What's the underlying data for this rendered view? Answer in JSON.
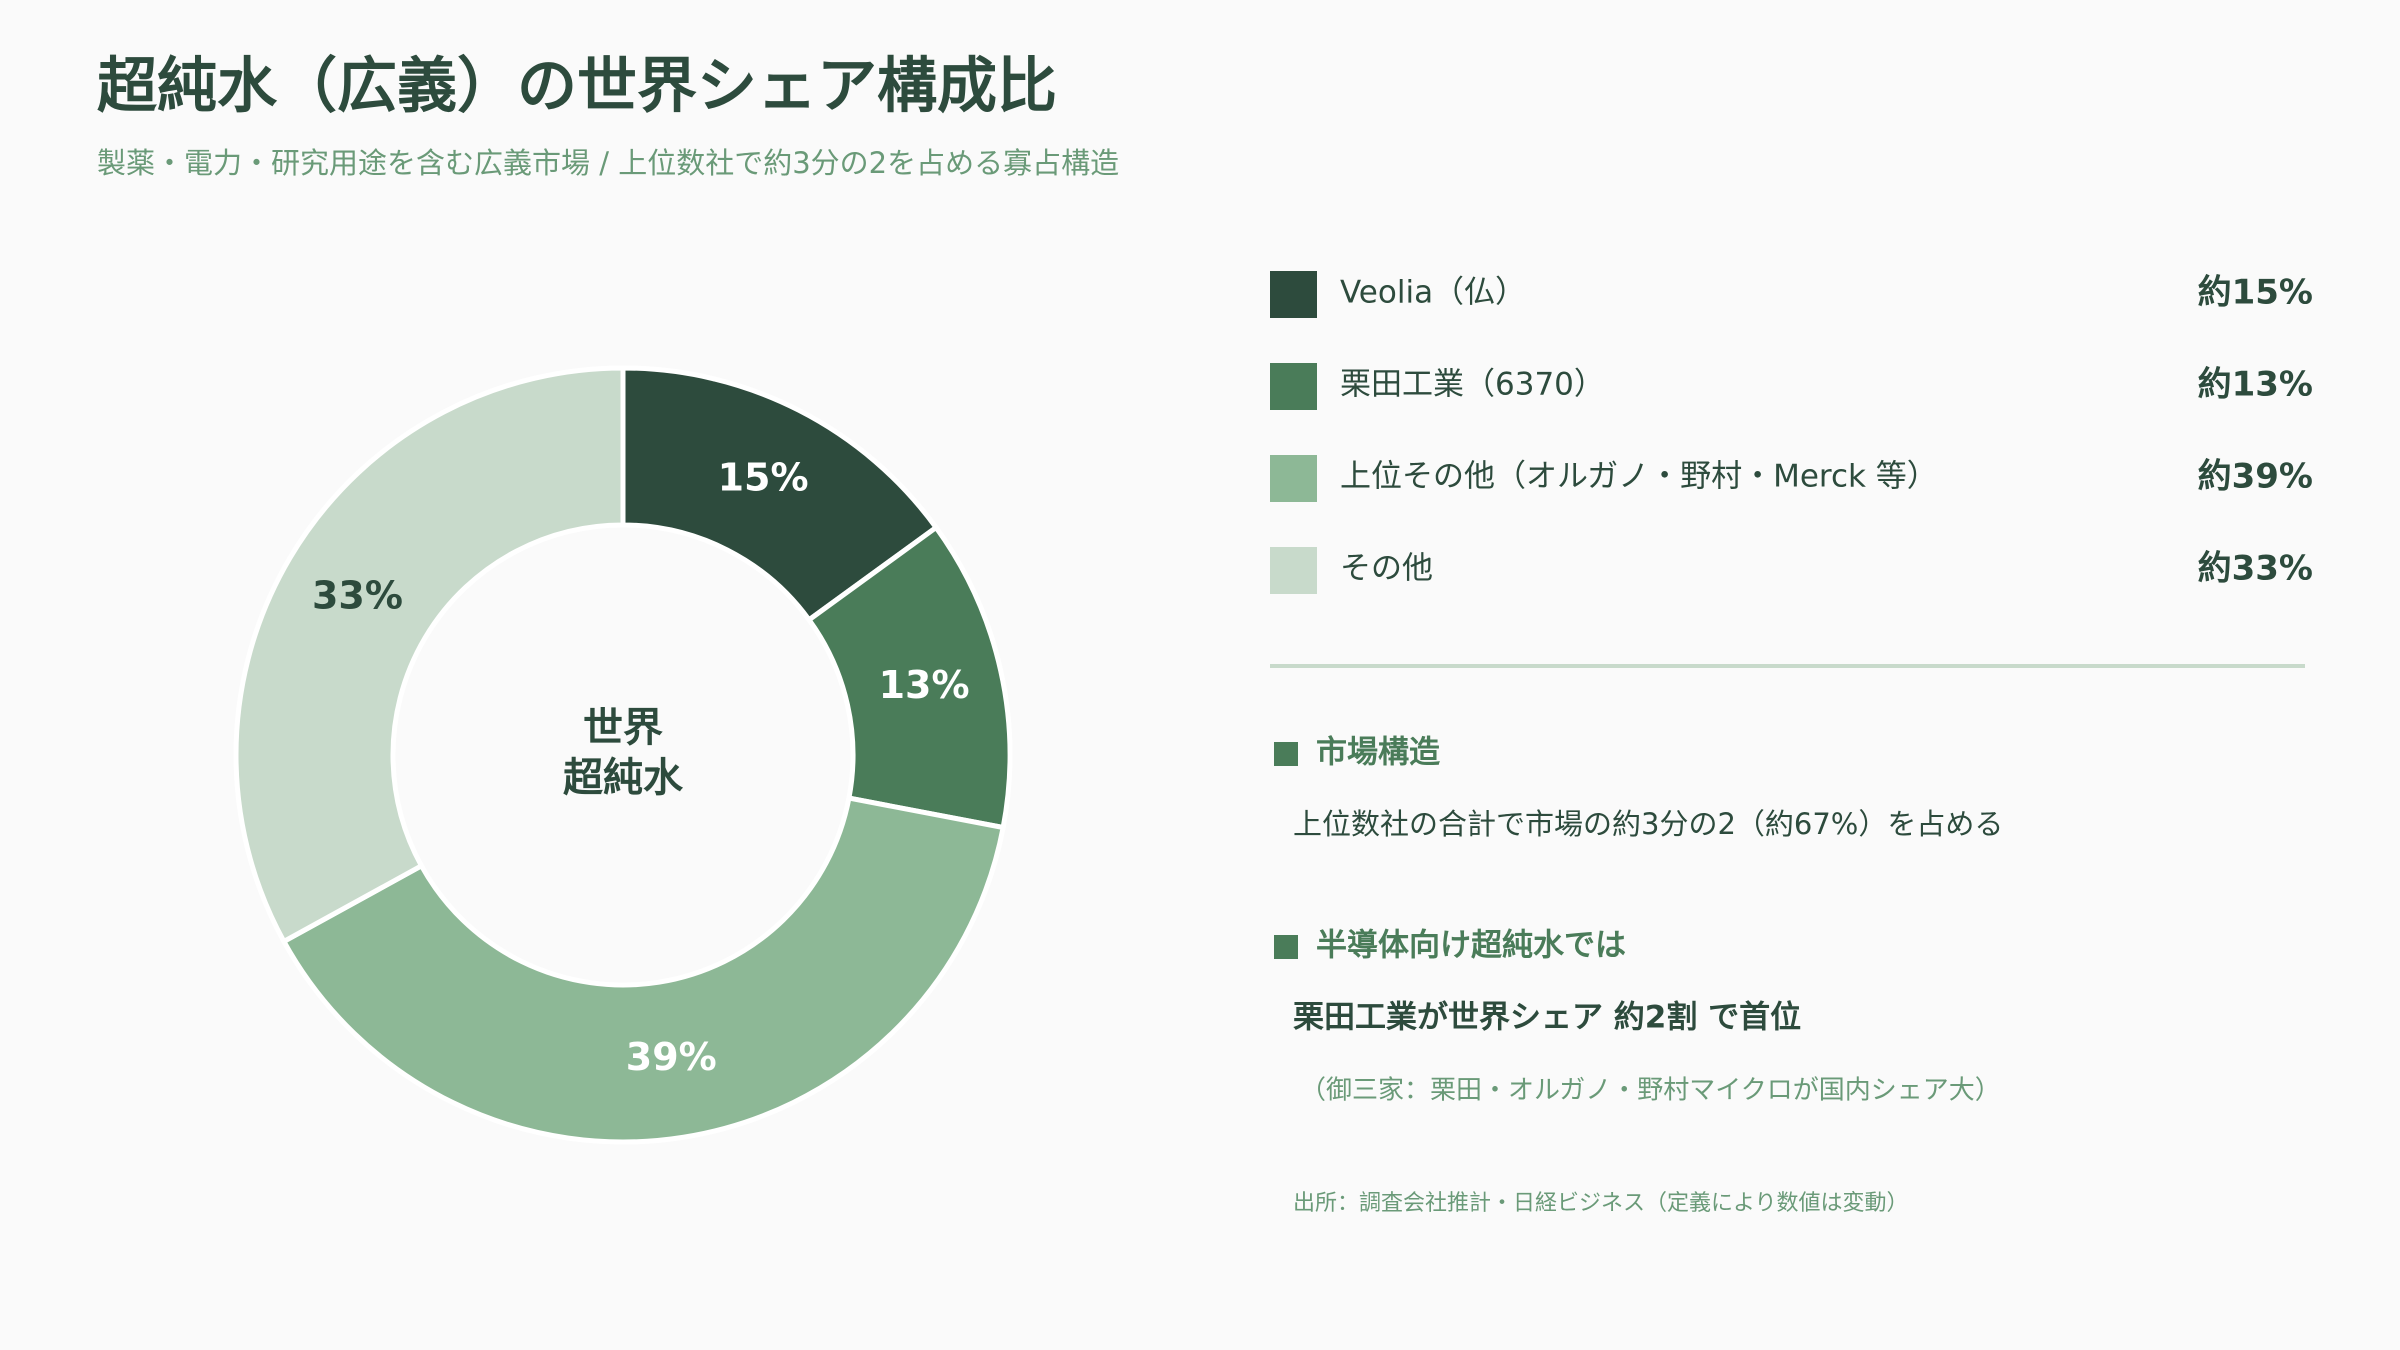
{
  "chart_data": {
    "type": "pie",
    "title": "超純水（広義）の世界シェア構成比",
    "subtitle": "製薬・電力・研究用途を含む広義市場 / 上位数社で約3分の2を占める寡占構造",
    "center_label": [
      "世界",
      "超純水"
    ],
    "categories": [
      "Veolia（仏）",
      "栗田工業（6370）",
      "上位その他（オルガノ・野村・Merck 等）",
      "その他"
    ],
    "values": [
      15,
      13,
      39,
      33
    ],
    "value_labels": [
      "15%",
      "13%",
      "39%",
      "33%"
    ],
    "legend_value_labels": [
      "約15%",
      "約13%",
      "約39%",
      "約33%"
    ],
    "colors": [
      "#2d4b3d",
      "#4a7c59",
      "#8db896",
      "#c8dacb"
    ],
    "label_colors": [
      "#ffffff",
      "#ffffff",
      "#ffffff",
      "#2d4b3d"
    ]
  },
  "notes": [
    {
      "heading": "市場構造",
      "body": "上位数社の合計で市場の約3分の2（約67%）を占める"
    },
    {
      "heading": "半導体向け超純水では",
      "body": "栗田工業が世界シェア 約2割 で首位",
      "detail": "（御三家：栗田・オルガノ・野村マイクロが国内シェア大）"
    }
  ],
  "source": "出所：調査会社推計・日経ビジネス（定義により数値は変動）"
}
